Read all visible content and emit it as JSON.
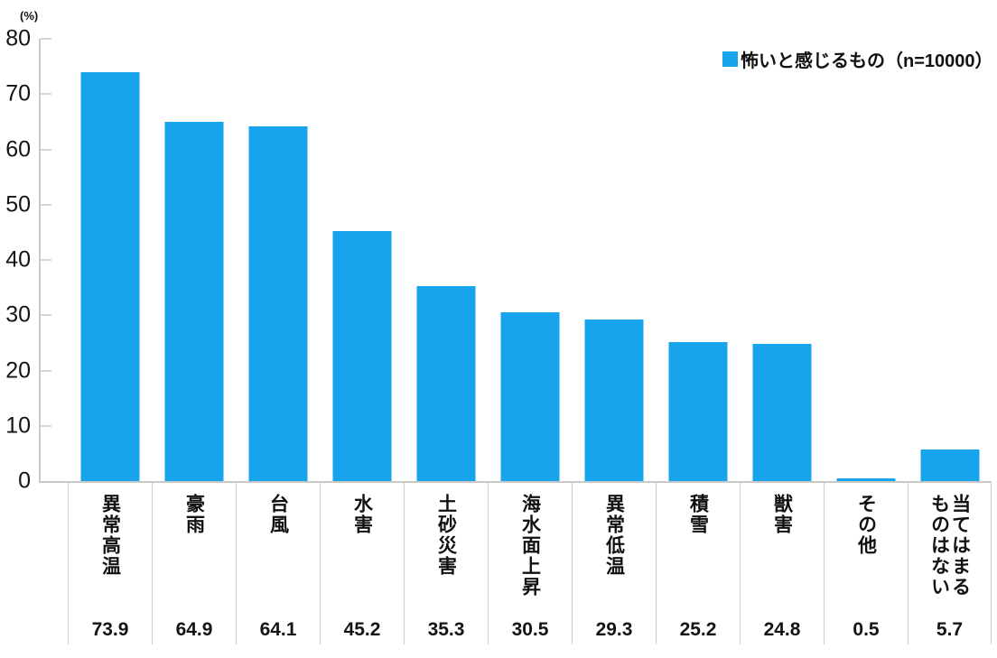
{
  "chart_data": {
    "type": "bar",
    "title": "",
    "unit_label": "(%)",
    "legend": "怖いと感じるもの（n=10000）",
    "legend_position": "top-right",
    "categories": [
      "異常高温",
      "豪雨",
      "台風",
      "水害",
      "土砂災害",
      "海水面上昇",
      "異常低温",
      "積雪",
      "獣害",
      "その他",
      "当てはまる\nものはない"
    ],
    "values": [
      73.9,
      64.9,
      64.1,
      45.2,
      35.3,
      30.5,
      29.3,
      25.2,
      24.8,
      0.5,
      5.7
    ],
    "value_labels": [
      "73.9",
      "64.9",
      "64.1",
      "45.2",
      "35.3",
      "30.5",
      "29.3",
      "25.2",
      "24.8",
      "0.5",
      "5.7"
    ],
    "ylabel": "(%)",
    "xlabel": "",
    "ylim": [
      0,
      80
    ],
    "yticks": [
      0,
      10,
      20,
      30,
      40,
      50,
      60,
      70,
      80
    ],
    "grid": false
  },
  "colors": {
    "bar": "#18a4ec",
    "axis": "#c8c8c8",
    "divider": "#cccccc",
    "text": "#141414"
  }
}
